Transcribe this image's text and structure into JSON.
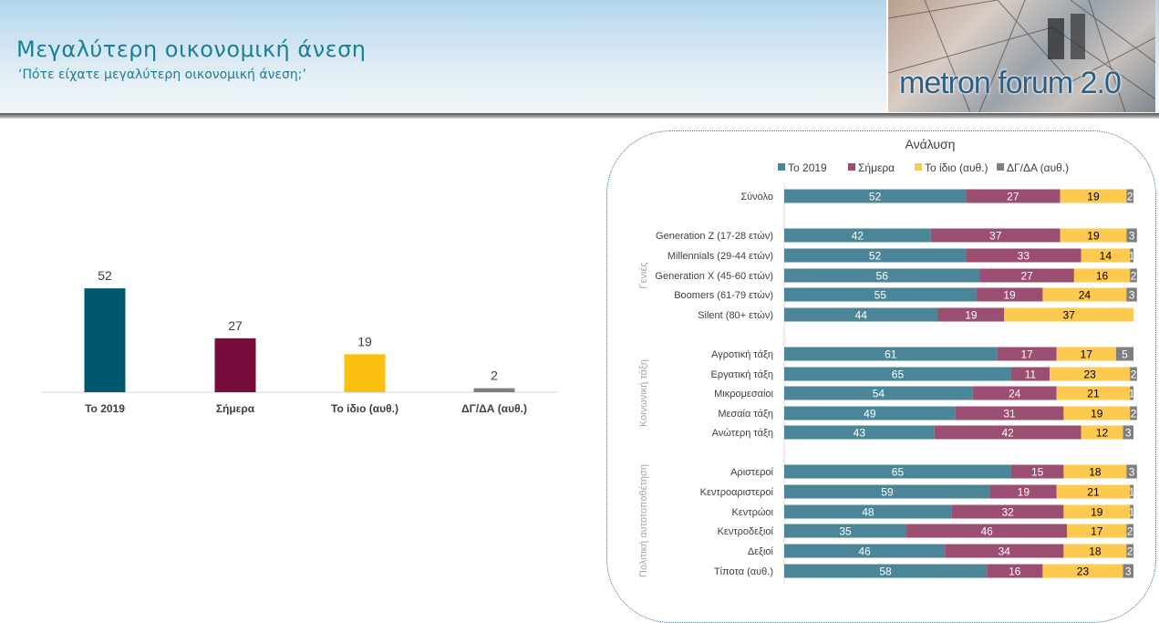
{
  "header": {
    "title": "Μεγαλύτερη οικονομική άνεση",
    "subtitle": "‘Πότε είχατε μεγαλύτερη οικονομική άνεση;’",
    "logo_text": "metron forum 2.0"
  },
  "chart_data": [
    {
      "type": "bar",
      "title": "",
      "categories": [
        "Το 2019",
        "Σήμερα",
        "Το ίδιο (αυθ.)",
        "ΔΓ/ΔΑ (αυθ.)"
      ],
      "values": [
        52,
        27,
        19,
        2
      ],
      "colors": [
        "#00586e",
        "#780c3c",
        "#fbbf0f",
        "#808080"
      ],
      "ylim": [
        0,
        60
      ],
      "grid": false
    },
    {
      "type": "bar",
      "orientation": "horizontal",
      "stacked": true,
      "title": "Ανάλυση",
      "legend_position": "top",
      "series_names": [
        "Το 2019",
        "Σήμερα",
        "Το ίδιο (αυθ.)",
        "ΔΓ/ΔΑ (αυθ.)"
      ],
      "colors": [
        "#4a8697",
        "#9b4e72",
        "#fdc94f",
        "#7f7f7f"
      ],
      "groups": [
        {
          "label": "",
          "rows": [
            {
              "label": "Σύνολο",
              "values": [
                52,
                27,
                19,
                2
              ]
            }
          ]
        },
        {
          "label": "Γενιές",
          "rows": [
            {
              "label": "Generation Z (17-28 ετών)",
              "values": [
                42,
                37,
                19,
                3
              ]
            },
            {
              "label": "Millennials (29-44 ετών)",
              "values": [
                52,
                33,
                14,
                1
              ]
            },
            {
              "label": "Generation X (45-60 ετών)",
              "values": [
                56,
                27,
                16,
                2
              ]
            },
            {
              "label": "Boomers (61-79 ετών)",
              "values": [
                55,
                19,
                24,
                3
              ]
            },
            {
              "label": "Silent (80+ ετών)",
              "values": [
                44,
                19,
                37,
                0
              ]
            }
          ]
        },
        {
          "label": "Κοινωνική τάξη",
          "rows": [
            {
              "label": "Αγροτική τάξη",
              "values": [
                61,
                17,
                17,
                5
              ]
            },
            {
              "label": "Εργατική τάξη",
              "values": [
                65,
                11,
                23,
                2
              ]
            },
            {
              "label": "Μικρομεσαίοι",
              "values": [
                54,
                24,
                21,
                1
              ]
            },
            {
              "label": "Μεσαία τάξη",
              "values": [
                49,
                31,
                19,
                2
              ]
            },
            {
              "label": "Ανώτερη τάξη",
              "values": [
                43,
                42,
                12,
                3
              ]
            }
          ]
        },
        {
          "label": "Πολιτική αυτοτοποθέτηση",
          "rows": [
            {
              "label": "Αριστεροί",
              "values": [
                65,
                15,
                18,
                3
              ]
            },
            {
              "label": "Κεντροαριστεροί",
              "values": [
                59,
                19,
                21,
                1
              ]
            },
            {
              "label": "Κεντρώοι",
              "values": [
                48,
                32,
                19,
                1
              ]
            },
            {
              "label": "Κεντροδεξιοί",
              "values": [
                35,
                46,
                17,
                2
              ]
            },
            {
              "label": "Δεξιοί",
              "values": [
                46,
                34,
                18,
                2
              ]
            },
            {
              "label": "Τίποτα (αυθ.)",
              "values": [
                58,
                16,
                23,
                3
              ]
            }
          ]
        }
      ]
    }
  ]
}
